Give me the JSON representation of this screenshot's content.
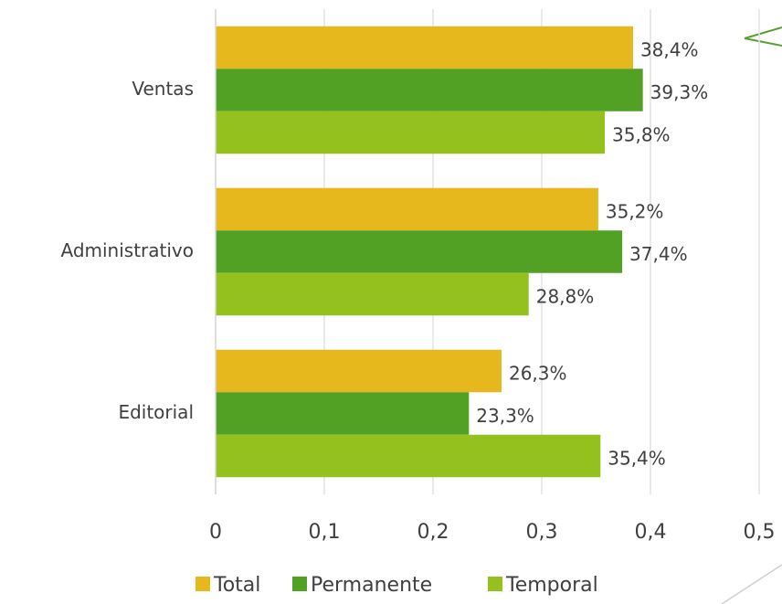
{
  "chart_data": {
    "type": "bar",
    "orientation": "horizontal",
    "categories": [
      "Ventas",
      "Administrativo",
      "Editorial"
    ],
    "series": [
      {
        "name": "Total",
        "color": "#e6b81e",
        "values": [
          0.384,
          0.352,
          0.263
        ],
        "value_labels": [
          "38,4%",
          "35,2%",
          "26,3%"
        ]
      },
      {
        "name": "Permanente",
        "color": "#52a024",
        "values": [
          0.393,
          0.374,
          0.233
        ],
        "value_labels": [
          "39,3%",
          "37,4%",
          "23,3%"
        ]
      },
      {
        "name": "Temporal",
        "color": "#95c11f",
        "values": [
          0.358,
          0.288,
          0.354
        ],
        "value_labels": [
          "35,8%",
          "28,8%",
          "35,4%"
        ]
      }
    ],
    "xlim": [
      0,
      0.5
    ],
    "xticks": [
      0,
      {
        "value": 0.1,
        "label": "0,1"
      },
      {
        "value": 0.2,
        "label": "0,2"
      },
      {
        "value": 0.3,
        "label": "0,3"
      },
      {
        "value": 0.4,
        "label": "0,4"
      },
      {
        "value": 0.5,
        "label": "0,5"
      }
    ],
    "grid": true,
    "legend": "bottom"
  }
}
